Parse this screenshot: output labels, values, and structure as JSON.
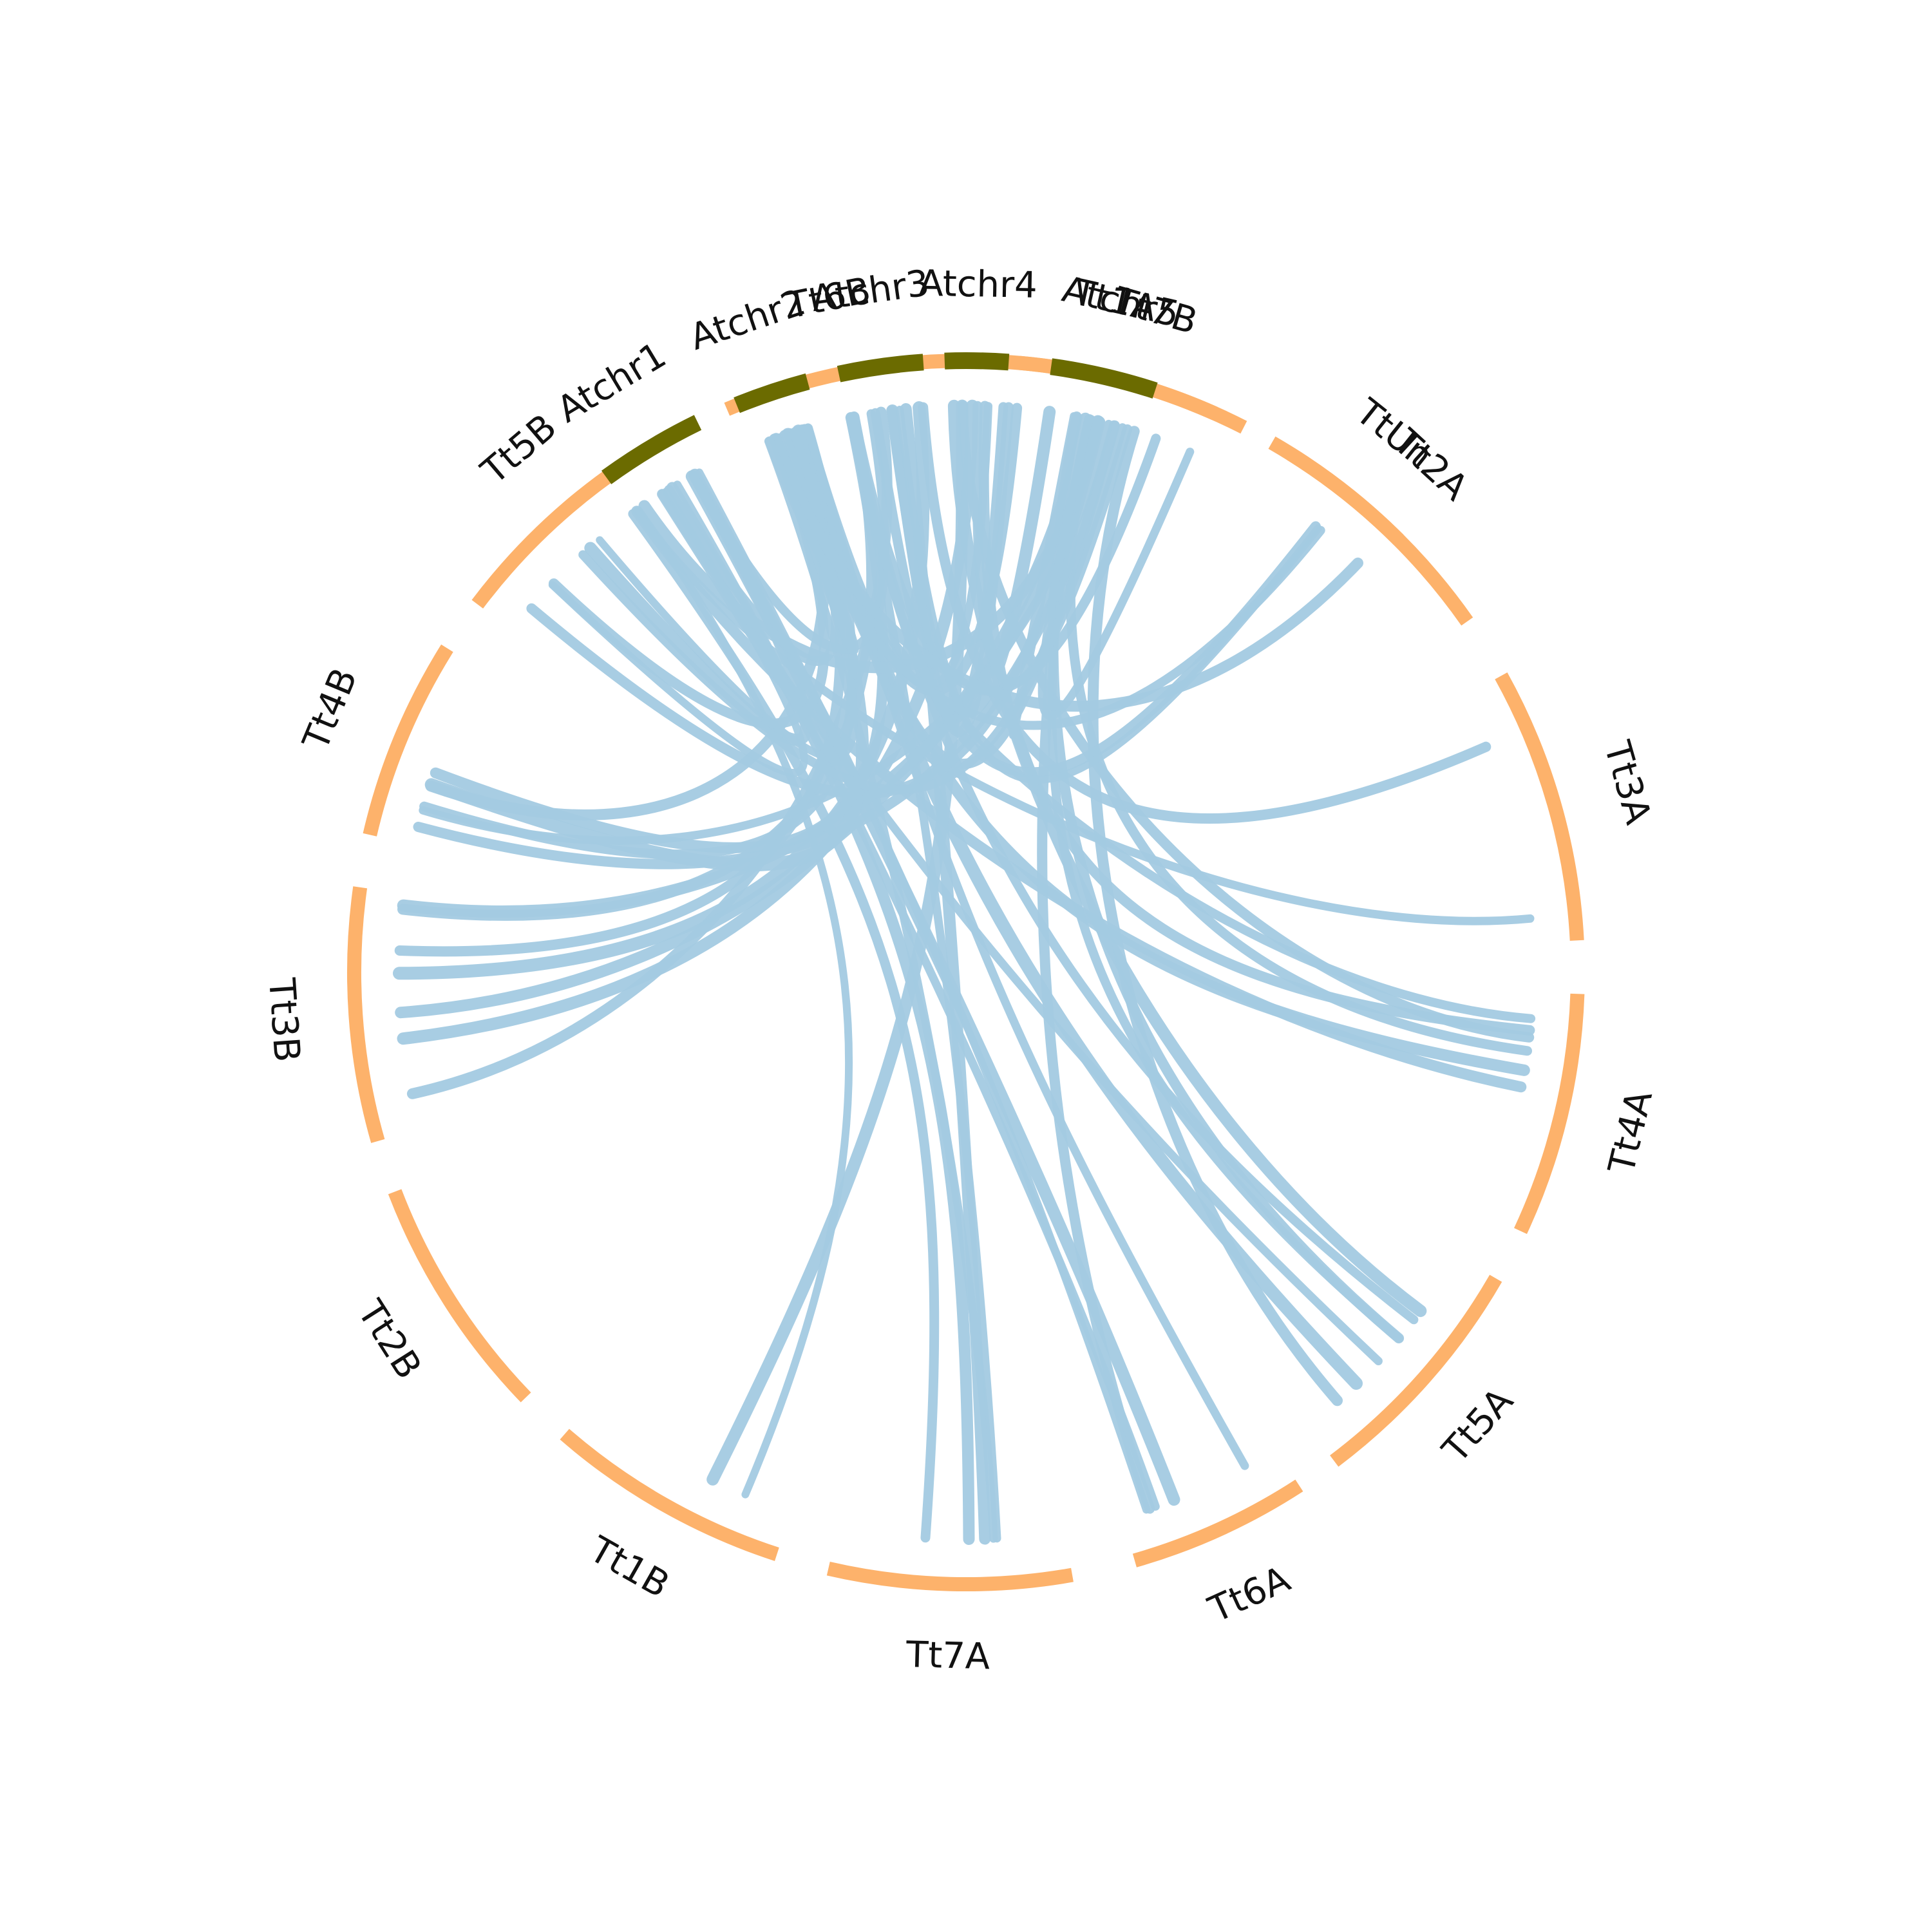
{
  "colors": {
    "atchr": "#6b6b00",
    "tt": "#fdb26b",
    "link": "#a3cae2"
  },
  "segments": [
    {
      "id": "Tt1A",
      "label": "Tt1A",
      "group": "tt"
    },
    {
      "id": "Tt2A",
      "label": "Tt2A",
      "group": "tt"
    },
    {
      "id": "Tt3A",
      "label": "Tt3A",
      "group": "tt"
    },
    {
      "id": "Tt4A",
      "label": "Tt4A",
      "group": "tt"
    },
    {
      "id": "Tt5A",
      "label": "Tt5A",
      "group": "tt"
    },
    {
      "id": "Tt6A",
      "label": "Tt6A",
      "group": "tt"
    },
    {
      "id": "Tt7A",
      "label": "Tt7A",
      "group": "tt"
    },
    {
      "id": "Tt1B",
      "label": "Tt1B",
      "group": "tt"
    },
    {
      "id": "Tt2B",
      "label": "Tt2B",
      "group": "tt"
    },
    {
      "id": "Tt3B",
      "label": "Tt3B",
      "group": "tt"
    },
    {
      "id": "Tt4B",
      "label": "Tt4B",
      "group": "tt"
    },
    {
      "id": "Tt5B",
      "label": "Tt5B",
      "group": "tt"
    },
    {
      "id": "Tt6B",
      "label": "Tt6B",
      "group": "tt"
    },
    {
      "id": "Tt7B",
      "label": "Tt7B",
      "group": "tt"
    },
    {
      "id": "TtUn",
      "label": "TtUn",
      "group": "tt"
    },
    {
      "id": "Atchr1",
      "label": "Atchr1",
      "group": "atchr"
    },
    {
      "id": "Atchr2",
      "label": "Atchr2",
      "group": "atchr"
    },
    {
      "id": "Atchr3",
      "label": "Atchr3",
      "group": "atchr"
    },
    {
      "id": "Atchr4",
      "label": "Atchr4",
      "group": "atchr"
    },
    {
      "id": "Atchr5",
      "label": "Atchr5",
      "group": "atchr"
    }
  ]
}
